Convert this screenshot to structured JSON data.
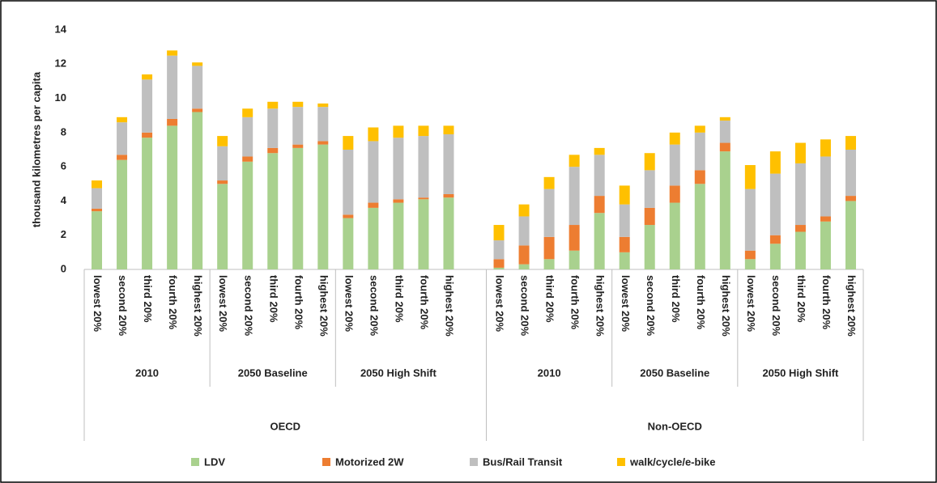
{
  "chart_data": {
    "type": "stacked_bar",
    "y_label": "thousand kilometres per capita",
    "ylim": [
      0,
      14
    ],
    "yticks": [
      0,
      2,
      4,
      6,
      8,
      10,
      12,
      14
    ],
    "groups": [
      {
        "label": "OECD",
        "subgroups": [
          {
            "label": "2010",
            "categories": [
              "lowest 20%",
              "second 20%",
              "third 20%",
              "fourth 20%",
              "highest 20%"
            ]
          },
          {
            "label": "2050 Baseline",
            "categories": [
              "lowest 20%",
              "second 20%",
              "third 20%",
              "fourth 20%",
              "highest 20%"
            ]
          },
          {
            "label": "2050 High Shift",
            "categories": [
              "lowest 20%",
              "second 20%",
              "third 20%",
              "fourth 20%",
              "highest 20%"
            ]
          }
        ]
      },
      {
        "label": "Non-OECD",
        "subgroups": [
          {
            "label": "2010",
            "categories": [
              "lowest 20%",
              "second 20%",
              "third 20%",
              "fourth 20%",
              "highest 20%"
            ]
          },
          {
            "label": "2050 Baseline",
            "categories": [
              "lowest 20%",
              "second 20%",
              "third 20%",
              "fourth 20%",
              "highest 20%"
            ]
          },
          {
            "label": "2050 High Shift",
            "categories": [
              "lowest 20%",
              "second 20%",
              "third 20%",
              "fourth 20%",
              "highest 20%"
            ]
          }
        ]
      }
    ],
    "series": [
      {
        "name": "LDV",
        "color": "#a9d18e",
        "values": [
          3.4,
          6.4,
          7.7,
          8.4,
          9.2,
          5.0,
          6.3,
          6.8,
          7.1,
          7.3,
          3.0,
          3.6,
          3.9,
          4.1,
          4.2,
          0.1,
          0.3,
          0.6,
          1.1,
          3.3,
          1.0,
          2.6,
          3.9,
          5.0,
          6.9,
          0.6,
          1.5,
          2.2,
          2.8,
          4.0
        ]
      },
      {
        "name": "Motorized 2W",
        "color": "#ed7d31",
        "values": [
          0.15,
          0.3,
          0.3,
          0.4,
          0.2,
          0.2,
          0.3,
          0.3,
          0.2,
          0.2,
          0.2,
          0.3,
          0.2,
          0.1,
          0.2,
          0.5,
          1.1,
          1.3,
          1.5,
          1.0,
          0.9,
          1.0,
          1.0,
          0.8,
          0.5,
          0.5,
          0.5,
          0.4,
          0.3,
          0.3
        ]
      },
      {
        "name": "Bus/Rail Transit",
        "color": "#bfbfbf",
        "values": [
          1.2,
          1.9,
          3.1,
          3.7,
          2.5,
          2.0,
          2.3,
          2.3,
          2.2,
          2.0,
          3.8,
          3.6,
          3.6,
          3.6,
          3.5,
          1.1,
          1.7,
          2.8,
          3.4,
          2.4,
          1.9,
          2.2,
          2.4,
          2.2,
          1.3,
          3.6,
          3.6,
          3.6,
          3.5,
          2.7
        ]
      },
      {
        "name": "walk/cycle/e-bike",
        "color": "#ffc000",
        "values": [
          0.45,
          0.3,
          0.3,
          0.3,
          0.2,
          0.6,
          0.5,
          0.4,
          0.3,
          0.2,
          0.8,
          0.8,
          0.7,
          0.6,
          0.5,
          0.9,
          0.7,
          0.7,
          0.7,
          0.4,
          1.1,
          1.0,
          0.7,
          0.4,
          0.2,
          1.4,
          1.3,
          1.2,
          1.0,
          0.8
        ]
      }
    ]
  }
}
